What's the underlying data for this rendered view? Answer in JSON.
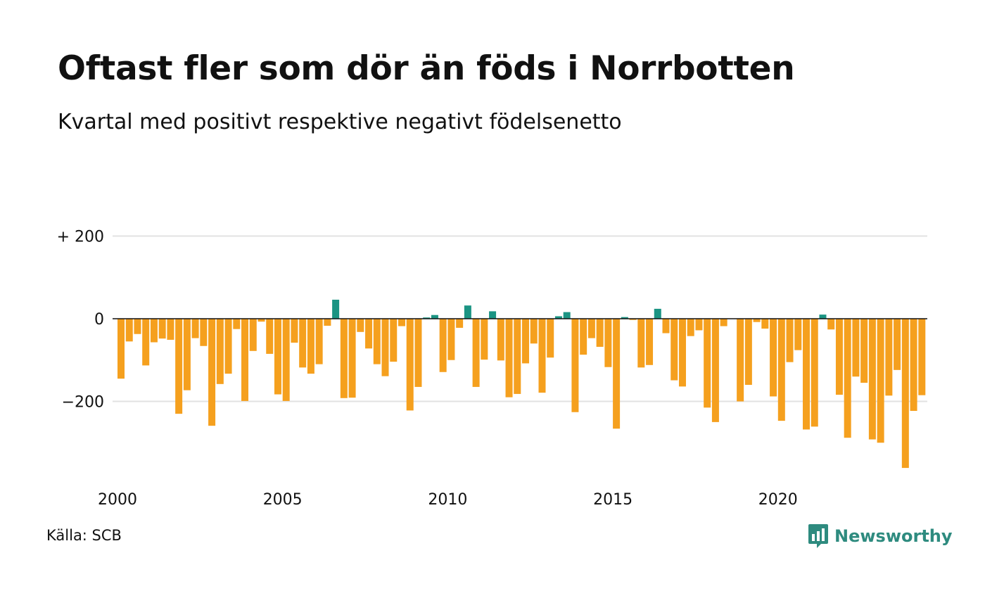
{
  "title": "Oftast fler som dör än föds i Norrbotten",
  "subtitle": "Kvartal med positivt respektive negativt födelsenetto",
  "source": "Källa: SCB",
  "brand": "Newsworthy",
  "colors": {
    "positive": "#1b9483",
    "negative": "#f5a01e",
    "grid": "#e2e2e2",
    "baseline": "#111111",
    "brand": "#2e8b7f"
  },
  "chart_data": {
    "type": "bar",
    "x_start": "2000 Q1",
    "x_end": "2024 Q2",
    "x_ticks": [
      "2000",
      "2005",
      "2010",
      "2015",
      "2020"
    ],
    "y_ticks": [
      {
        "value": 200,
        "label": "+ 200"
      },
      {
        "value": 0,
        "label": "0"
      },
      {
        "value": -200,
        "label": "−200"
      }
    ],
    "ylim": [
      -370,
      200
    ],
    "grid": true,
    "values": [
      -145,
      -55,
      -37,
      -113,
      -57,
      -48,
      -51,
      -230,
      -173,
      -47,
      -66,
      -259,
      -158,
      -133,
      -25,
      -199,
      -78,
      -7,
      -85,
      -183,
      -199,
      -58,
      -118,
      -133,
      -110,
      -17,
      46,
      -192,
      -191,
      -32,
      -72,
      -110,
      -139,
      -104,
      -18,
      -222,
      -165,
      3,
      9,
      -129,
      -100,
      -22,
      32,
      -165,
      -99,
      18,
      -101,
      -190,
      -182,
      -108,
      -60,
      -179,
      -94,
      6,
      16,
      -226,
      -87,
      -47,
      -68,
      -117,
      -266,
      4,
      -3,
      -118,
      -112,
      24,
      -35,
      -149,
      -164,
      -42,
      -28,
      -215,
      -250,
      -18,
      0,
      -200,
      -160,
      -8,
      -24,
      -188,
      -247,
      -105,
      -76,
      -268,
      -261,
      10,
      -26,
      -184,
      -288,
      -140,
      -155,
      -292,
      -300,
      -186,
      -124,
      -361,
      -223,
      -185
    ]
  }
}
